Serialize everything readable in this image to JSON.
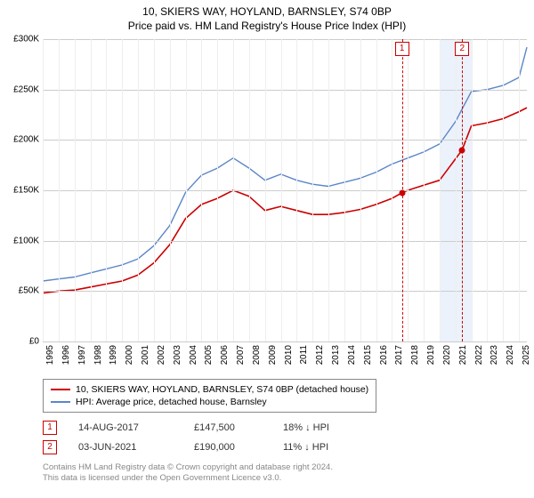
{
  "chart": {
    "title1": "10, SKIERS WAY, HOYLAND, BARNSLEY, S74 0BP",
    "title2": "Price paid vs. HM Land Registry's House Price Index (HPI)",
    "type": "line",
    "background_color": "#ffffff",
    "grid_color_h": "#cccccc",
    "grid_color_v": "#eeeeee",
    "xlim": [
      1995,
      2025.5
    ],
    "ylim": [
      0,
      300
    ],
    "ytick_step": 50,
    "yticks": [
      {
        "v": 0,
        "label": "£0"
      },
      {
        "v": 50,
        "label": "£50K"
      },
      {
        "v": 100,
        "label": "£100K"
      },
      {
        "v": 150,
        "label": "£150K"
      },
      {
        "v": 200,
        "label": "£200K"
      },
      {
        "v": 250,
        "label": "£250K"
      },
      {
        "v": 300,
        "label": "£300K"
      }
    ],
    "xticks": [
      1995,
      1996,
      1997,
      1998,
      1999,
      2000,
      2001,
      2002,
      2003,
      2004,
      2005,
      2006,
      2007,
      2008,
      2009,
      2010,
      2011,
      2012,
      2013,
      2014,
      2015,
      2016,
      2017,
      2018,
      2019,
      2020,
      2021,
      2022,
      2023,
      2024,
      2025
    ],
    "shade": {
      "from": 2020,
      "to": 2022,
      "color": "rgba(100,150,220,0.12)"
    },
    "series": [
      {
        "name": "HPI: Average price, detached house, Barnsley",
        "color": "#5b86c7",
        "line_width": 1.4,
        "points": [
          [
            1995,
            60
          ],
          [
            1996,
            62
          ],
          [
            1997,
            64
          ],
          [
            1998,
            68
          ],
          [
            1999,
            72
          ],
          [
            2000,
            76
          ],
          [
            2001,
            82
          ],
          [
            2002,
            95
          ],
          [
            2003,
            115
          ],
          [
            2004,
            148
          ],
          [
            2005,
            165
          ],
          [
            2006,
            172
          ],
          [
            2007,
            182
          ],
          [
            2008,
            172
          ],
          [
            2009,
            160
          ],
          [
            2010,
            166
          ],
          [
            2011,
            160
          ],
          [
            2012,
            156
          ],
          [
            2013,
            154
          ],
          [
            2014,
            158
          ],
          [
            2015,
            162
          ],
          [
            2016,
            168
          ],
          [
            2017,
            176
          ],
          [
            2018,
            182
          ],
          [
            2019,
            188
          ],
          [
            2020,
            196
          ],
          [
            2021,
            218
          ],
          [
            2022,
            248
          ],
          [
            2023,
            250
          ],
          [
            2024,
            254
          ],
          [
            2025,
            262
          ],
          [
            2025.5,
            292
          ]
        ]
      },
      {
        "name": "10, SKIERS WAY, HOYLAND, BARNSLEY, S74 0BP (detached house)",
        "color": "#cc0000",
        "line_width": 1.6,
        "points": [
          [
            1995,
            48
          ],
          [
            1996,
            50
          ],
          [
            1997,
            51
          ],
          [
            1998,
            54
          ],
          [
            1999,
            57
          ],
          [
            2000,
            60
          ],
          [
            2001,
            66
          ],
          [
            2002,
            78
          ],
          [
            2003,
            96
          ],
          [
            2004,
            122
          ],
          [
            2005,
            136
          ],
          [
            2006,
            142
          ],
          [
            2007,
            150
          ],
          [
            2008,
            144
          ],
          [
            2009,
            130
          ],
          [
            2010,
            134
          ],
          [
            2011,
            130
          ],
          [
            2012,
            126
          ],
          [
            2013,
            126
          ],
          [
            2014,
            128
          ],
          [
            2015,
            131
          ],
          [
            2016,
            136
          ],
          [
            2017,
            142
          ],
          [
            2017.63,
            147.5
          ],
          [
            2018,
            150
          ],
          [
            2019,
            155
          ],
          [
            2020,
            160
          ],
          [
            2021.42,
            190
          ],
          [
            2022,
            214
          ],
          [
            2023,
            217
          ],
          [
            2024,
            221
          ],
          [
            2025,
            228
          ],
          [
            2025.5,
            232
          ]
        ]
      }
    ],
    "markers": [
      {
        "id": "1",
        "x": 2017.63,
        "y": 147.5,
        "dot_color": "#cc0000"
      },
      {
        "id": "2",
        "x": 2021.42,
        "y": 190,
        "dot_color": "#cc0000"
      }
    ]
  },
  "legend": {
    "items": [
      {
        "color": "#cc0000",
        "label": "10, SKIERS WAY, HOYLAND, BARNSLEY, S74 0BP (detached house)"
      },
      {
        "color": "#5b86c7",
        "label": "HPI: Average price, detached house, Barnsley"
      }
    ]
  },
  "sales": [
    {
      "id": "1",
      "date": "14-AUG-2017",
      "price": "£147,500",
      "pct": "18% ↓ HPI"
    },
    {
      "id": "2",
      "date": "03-JUN-2021",
      "price": "£190,000",
      "pct": "11% ↓ HPI"
    }
  ],
  "footer": {
    "line1": "Contains HM Land Registry data © Crown copyright and database right 2024.",
    "line2": "This data is licensed under the Open Government Licence v3.0."
  }
}
